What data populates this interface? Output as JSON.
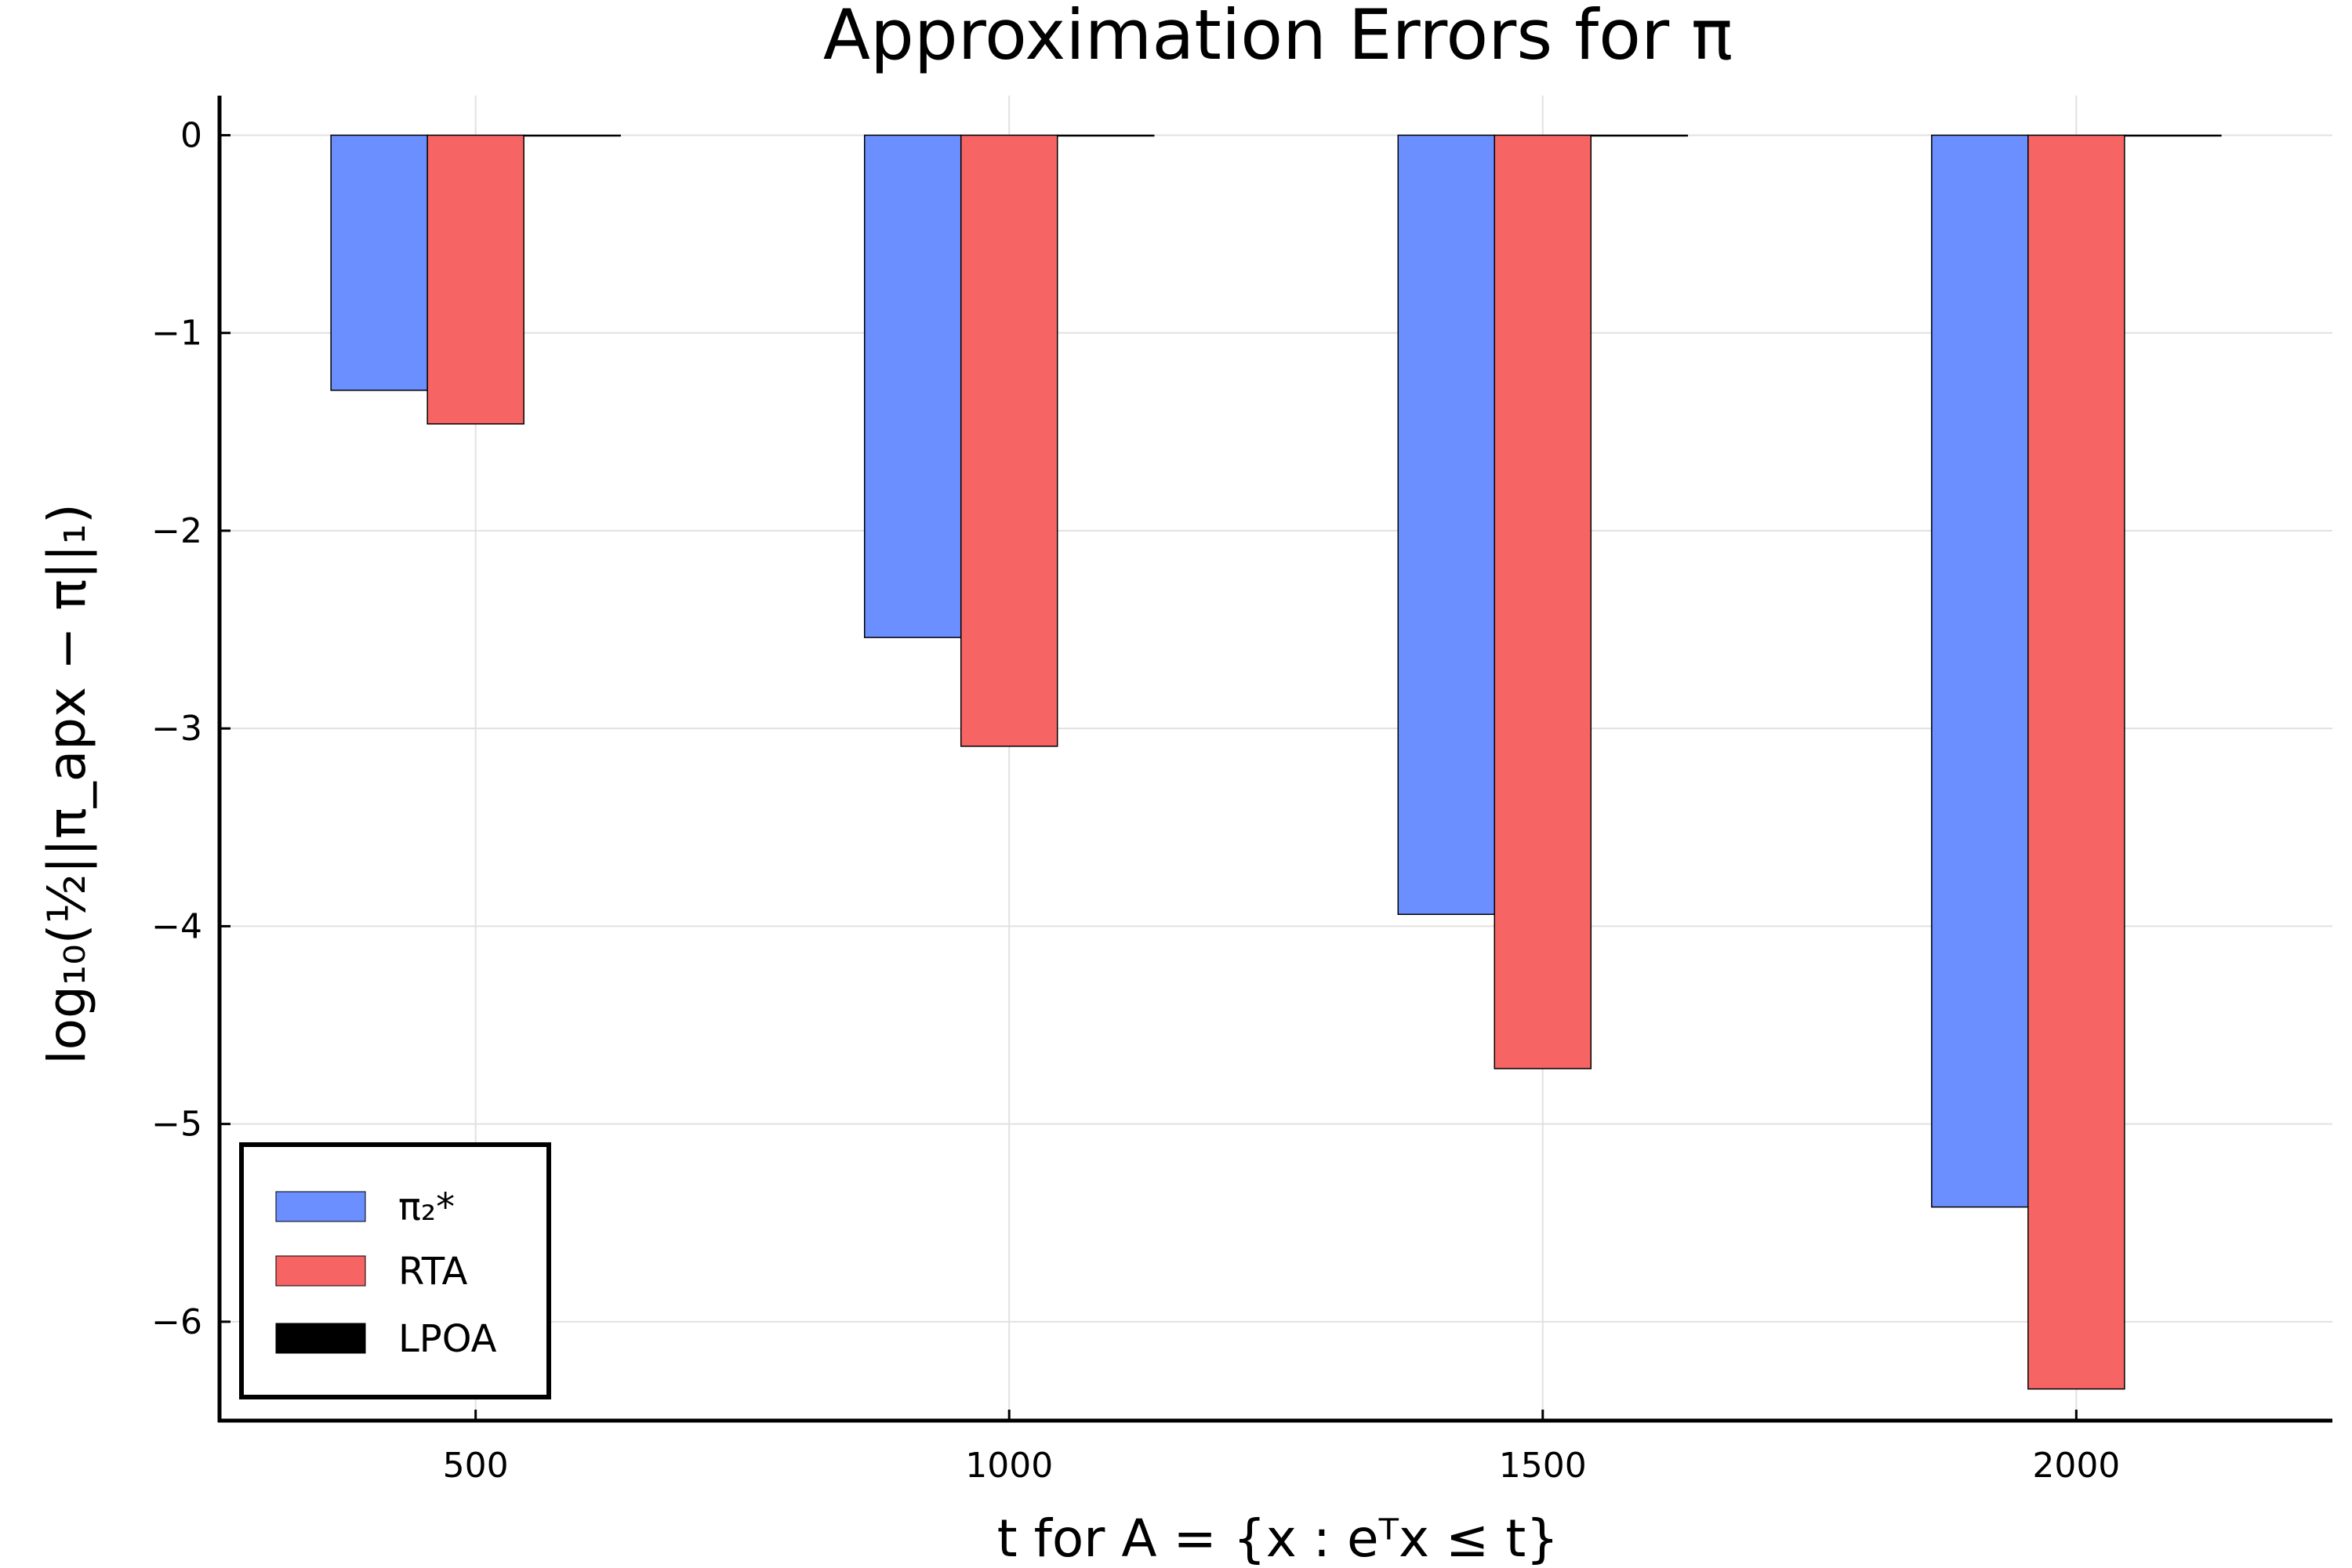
{
  "chart_data": {
    "type": "bar",
    "title": "Approximation Errors for π",
    "xlabel": "t for A = {x : eᵀx ≤ t}",
    "ylabel": "log₁₀(½||π_apx − π||₁)",
    "categories": [
      500,
      1000,
      1500,
      2000
    ],
    "x_ticks": [
      "500",
      "1000",
      "1500",
      "2000"
    ],
    "y_ticks": [
      "0",
      "−1",
      "−2",
      "−3",
      "−4",
      "−5",
      "−6"
    ],
    "y_tick_values": [
      0,
      -1,
      -2,
      -3,
      -4,
      -5,
      -6
    ],
    "ylim": [
      -6.5,
      0.2
    ],
    "xlim": [
      260,
      2240
    ],
    "grid": true,
    "legend_position": "bottom-left",
    "series": [
      {
        "name": "π₂*",
        "color": "#6b8fff",
        "values": [
          -1.29,
          -2.54,
          -3.94,
          -5.42
        ]
      },
      {
        "name": "RTA",
        "color": "#f76464",
        "values": [
          -1.46,
          -3.09,
          -4.72,
          -6.34
        ]
      },
      {
        "name": "LPOA",
        "color": "#000000",
        "values": [
          0,
          0,
          0,
          0
        ]
      }
    ]
  }
}
